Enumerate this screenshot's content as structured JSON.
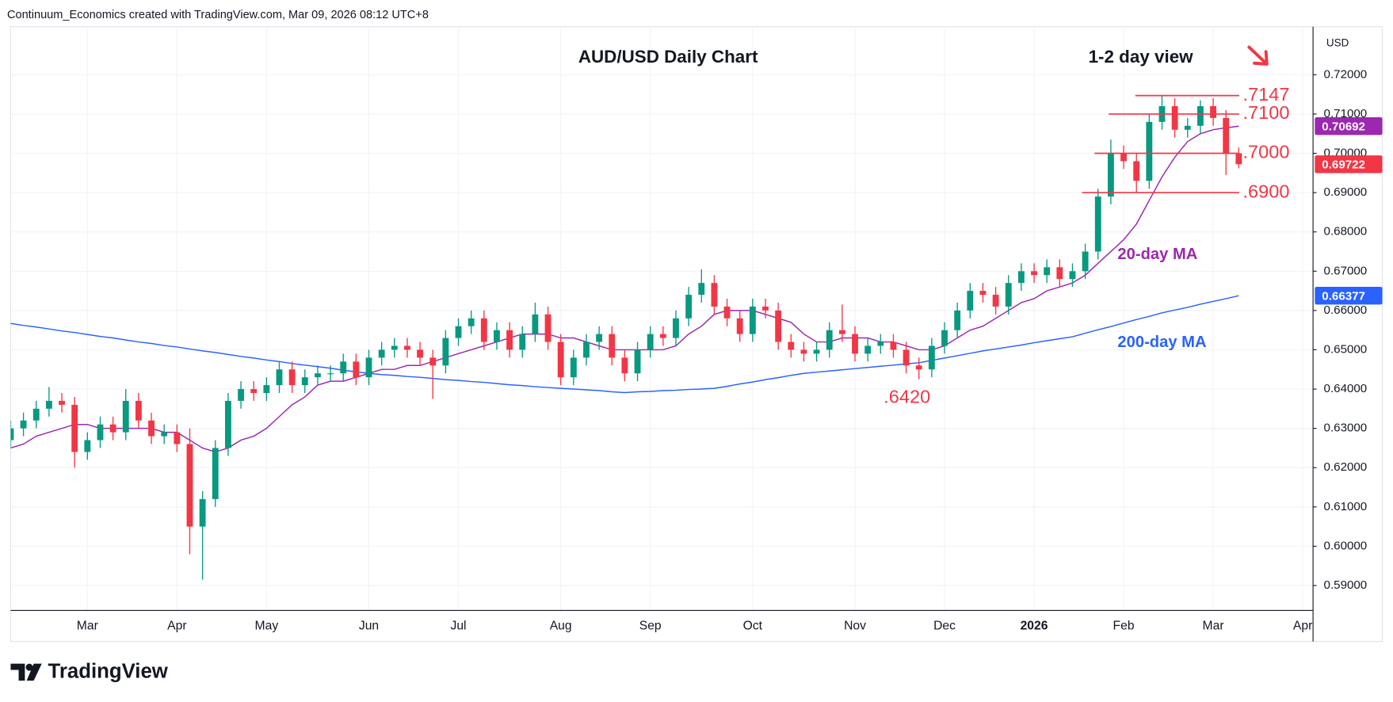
{
  "header": {
    "text": "Continuum_Economics created with TradingView.com, Mar 09, 2026 08:12 UTC+8"
  },
  "chart_data": {
    "type": "candlestick",
    "title": "AUD/USD Daily Chart",
    "subtitle": "1-2 day view",
    "currency": "USD",
    "categories": [
      null,
      null,
      null,
      null,
      null,
      null,
      "Mar",
      null,
      null,
      null,
      null,
      null,
      null,
      "Apr",
      null,
      null,
      null,
      null,
      null,
      null,
      "May",
      null,
      null,
      null,
      null,
      null,
      null,
      null,
      "Jun",
      null,
      null,
      null,
      null,
      null,
      null,
      "Jul",
      null,
      null,
      null,
      null,
      null,
      null,
      null,
      "Aug",
      null,
      null,
      null,
      null,
      null,
      null,
      "Sep",
      null,
      null,
      null,
      null,
      null,
      null,
      null,
      "Oct",
      null,
      null,
      null,
      null,
      null,
      null,
      null,
      "Nov",
      null,
      null,
      null,
      null,
      null,
      null,
      "Dec",
      null,
      null,
      null,
      null,
      null,
      null,
      "2026",
      null,
      null,
      null,
      null,
      null,
      null,
      "Feb",
      null,
      null,
      null,
      null,
      null,
      null,
      "Mar",
      null,
      null,
      null,
      null,
      null,
      null,
      "Apr"
    ],
    "open": [
      0.627,
      0.63,
      0.632,
      0.635,
      0.637,
      0.636,
      0.624,
      0.627,
      0.631,
      0.629,
      0.637,
      0.632,
      0.628,
      0.629,
      0.626,
      0.605,
      0.612,
      0.625,
      0.637,
      0.64,
      0.639,
      0.641,
      0.645,
      0.641,
      0.643,
      0.644,
      0.644,
      0.647,
      0.643,
      0.648,
      0.65,
      0.651,
      0.65,
      0.648,
      0.646,
      0.653,
      0.656,
      0.658,
      0.652,
      0.655,
      0.65,
      0.654,
      0.659,
      0.652,
      0.643,
      0.648,
      0.652,
      0.654,
      0.648,
      0.644,
      0.65,
      0.654,
      0.653,
      0.658,
      0.664,
      0.667,
      0.661,
      0.658,
      0.654,
      0.661,
      0.66,
      0.652,
      0.65,
      0.649,
      0.65,
      0.655,
      0.654,
      0.649,
      0.651,
      0.652,
      0.65,
      0.646,
      0.645,
      0.651,
      0.655,
      0.66,
      0.665,
      0.664,
      0.661,
      0.667,
      0.67,
      0.669,
      0.671,
      0.668,
      0.67,
      0.675,
      0.689,
      0.7,
      0.698,
      0.693,
      0.708,
      0.712,
      0.706,
      0.707,
      0.712,
      0.709,
      0.7,
      null,
      null,
      null,
      null,
      null
    ],
    "high": [
      0.632,
      0.634,
      0.637,
      0.6405,
      0.639,
      0.638,
      0.629,
      0.633,
      0.633,
      0.64,
      0.639,
      0.634,
      0.631,
      0.631,
      0.63,
      0.614,
      0.627,
      0.639,
      0.642,
      0.642,
      0.643,
      0.647,
      0.647,
      0.645,
      0.646,
      0.646,
      0.649,
      0.649,
      0.65,
      0.652,
      0.653,
      0.653,
      0.652,
      0.65,
      0.655,
      0.658,
      0.66,
      0.66,
      0.657,
      0.657,
      0.656,
      0.662,
      0.661,
      0.654,
      0.65,
      0.654,
      0.656,
      0.656,
      0.65,
      0.652,
      0.656,
      0.656,
      0.66,
      0.666,
      0.6705,
      0.669,
      0.663,
      0.66,
      0.663,
      0.663,
      0.662,
      0.654,
      0.652,
      0.652,
      0.657,
      0.6615,
      0.656,
      0.653,
      0.654,
      0.654,
      0.652,
      0.648,
      0.653,
      0.657,
      0.662,
      0.667,
      0.667,
      0.666,
      0.669,
      0.672,
      0.672,
      0.673,
      0.673,
      0.672,
      0.677,
      0.691,
      0.7035,
      0.702,
      0.7,
      0.71,
      0.7147,
      0.714,
      0.709,
      0.7135,
      0.714,
      0.711,
      0.7015,
      null,
      null,
      null,
      null,
      null
    ],
    "low": [
      0.625,
      0.628,
      0.63,
      0.633,
      0.634,
      0.62,
      0.622,
      0.625,
      0.627,
      0.627,
      0.63,
      0.626,
      0.626,
      0.624,
      0.598,
      0.5915,
      0.61,
      0.623,
      0.635,
      0.637,
      0.637,
      0.639,
      0.639,
      0.639,
      0.641,
      0.642,
      0.642,
      0.641,
      0.641,
      0.646,
      0.648,
      0.648,
      0.646,
      0.6375,
      0.644,
      0.651,
      0.654,
      0.65,
      0.65,
      0.648,
      0.648,
      0.652,
      0.65,
      0.641,
      0.641,
      0.646,
      0.65,
      0.646,
      0.642,
      0.642,
      0.648,
      0.651,
      0.651,
      0.656,
      0.662,
      0.659,
      0.656,
      0.652,
      0.652,
      0.658,
      0.65,
      0.648,
      0.647,
      0.647,
      0.648,
      0.652,
      0.647,
      0.647,
      0.649,
      0.648,
      0.644,
      0.6425,
      0.643,
      0.649,
      0.653,
      0.658,
      0.662,
      0.659,
      0.659,
      0.665,
      0.667,
      0.667,
      0.666,
      0.666,
      0.668,
      0.673,
      0.687,
      0.696,
      0.69,
      0.691,
      0.706,
      0.704,
      0.704,
      0.705,
      0.707,
      0.6945,
      0.6962,
      null,
      null,
      null,
      null,
      null
    ],
    "close": [
      0.63,
      0.632,
      0.635,
      0.637,
      0.636,
      0.624,
      0.627,
      0.631,
      0.629,
      0.637,
      0.632,
      0.628,
      0.629,
      0.626,
      0.605,
      0.612,
      0.625,
      0.637,
      0.64,
      0.639,
      0.641,
      0.645,
      0.641,
      0.643,
      0.644,
      0.644,
      0.647,
      0.643,
      0.648,
      0.65,
      0.651,
      0.65,
      0.648,
      0.646,
      0.653,
      0.656,
      0.658,
      0.652,
      0.655,
      0.65,
      0.654,
      0.659,
      0.652,
      0.643,
      0.648,
      0.652,
      0.654,
      0.648,
      0.644,
      0.65,
      0.654,
      0.653,
      0.658,
      0.664,
      0.667,
      0.661,
      0.658,
      0.654,
      0.661,
      0.66,
      0.652,
      0.65,
      0.649,
      0.65,
      0.655,
      0.654,
      0.649,
      0.651,
      0.652,
      0.65,
      0.646,
      0.645,
      0.651,
      0.655,
      0.66,
      0.665,
      0.664,
      0.661,
      0.667,
      0.67,
      0.669,
      0.671,
      0.668,
      0.67,
      0.675,
      0.689,
      0.7,
      0.698,
      0.693,
      0.708,
      0.712,
      0.706,
      0.707,
      0.712,
      0.709,
      0.7,
      0.69722,
      null,
      null,
      null,
      null,
      null
    ],
    "up_color": "#089981",
    "down_color": "#f23645",
    "series": [
      {
        "name": "20-day MA",
        "color": "#9c27b0",
        "values": [
          0.625,
          0.626,
          0.628,
          0.629,
          0.63,
          0.631,
          0.631,
          0.63,
          0.63,
          0.63,
          0.63,
          0.63,
          0.629,
          0.629,
          0.627,
          0.625,
          0.624,
          0.625,
          0.627,
          0.628,
          0.63,
          0.633,
          0.636,
          0.638,
          0.641,
          0.642,
          0.642,
          0.643,
          0.644,
          0.645,
          0.645,
          0.646,
          0.646,
          0.647,
          0.648,
          0.649,
          0.65,
          0.651,
          0.652,
          0.653,
          0.654,
          0.654,
          0.654,
          0.653,
          0.653,
          0.652,
          0.651,
          0.65,
          0.65,
          0.65,
          0.65,
          0.65,
          0.651,
          0.654,
          0.656,
          0.659,
          0.66,
          0.66,
          0.66,
          0.659,
          0.658,
          0.657,
          0.654,
          0.652,
          0.652,
          0.653,
          0.653,
          0.653,
          0.652,
          0.652,
          0.651,
          0.65,
          0.65,
          0.651,
          0.653,
          0.655,
          0.656,
          0.658,
          0.66,
          0.662,
          0.663,
          0.665,
          0.666,
          0.667,
          0.669,
          0.672,
          0.675,
          0.678,
          0.682,
          0.688,
          0.694,
          0.699,
          0.703,
          0.705,
          0.706,
          0.7065,
          0.70692,
          null,
          null,
          null,
          null,
          null
        ]
      },
      {
        "name": "200-day MA",
        "color": "#2962ff",
        "values": [
          0.6567,
          0.6562,
          0.6558,
          0.6553,
          0.6548,
          0.6544,
          0.6539,
          0.6534,
          0.653,
          0.6525,
          0.652,
          0.6516,
          0.6511,
          0.6507,
          0.6502,
          0.6497,
          0.6493,
          0.6488,
          0.6483,
          0.6479,
          0.6474,
          0.647,
          0.6465,
          0.6461,
          0.6457,
          0.6453,
          0.6448,
          0.6444,
          0.644,
          0.6437,
          0.6435,
          0.6432,
          0.643,
          0.6427,
          0.6424,
          0.6422,
          0.6419,
          0.6417,
          0.6414,
          0.6411,
          0.6409,
          0.6406,
          0.6404,
          0.6402,
          0.64,
          0.6398,
          0.6396,
          0.6393,
          0.6391,
          0.6393,
          0.6394,
          0.6396,
          0.6397,
          0.6399,
          0.64,
          0.6402,
          0.6407,
          0.6413,
          0.6418,
          0.6424,
          0.6429,
          0.6435,
          0.644,
          0.6443,
          0.6446,
          0.6449,
          0.6452,
          0.6455,
          0.6458,
          0.6461,
          0.6464,
          0.6467,
          0.6473,
          0.6479,
          0.6485,
          0.6491,
          0.6497,
          0.6502,
          0.6507,
          0.6512,
          0.6518,
          0.6523,
          0.6528,
          0.6533,
          0.6542,
          0.6551,
          0.6559,
          0.6568,
          0.6577,
          0.6585,
          0.6594,
          0.6601,
          0.6608,
          0.6616,
          0.6623,
          0.663,
          0.66377,
          null,
          null,
          null,
          null,
          null
        ]
      }
    ],
    "ylim": [
      0.58367,
      0.73221
    ],
    "yticks": [
      {
        "value": 0.59,
        "label": "0.59000"
      },
      {
        "value": 0.6,
        "label": "0.60000"
      },
      {
        "value": 0.61,
        "label": "0.61000"
      },
      {
        "value": 0.62,
        "label": "0.62000"
      },
      {
        "value": 0.63,
        "label": "0.63000"
      },
      {
        "value": 0.64,
        "label": "0.64000"
      },
      {
        "value": 0.65,
        "label": "0.65000"
      },
      {
        "value": 0.66,
        "label": "0.66000"
      },
      {
        "value": 0.67,
        "label": "0.67000"
      },
      {
        "value": 0.68,
        "label": "0.68000"
      },
      {
        "value": 0.69,
        "label": "0.69000"
      },
      {
        "value": 0.7,
        "label": "0.70000"
      },
      {
        "value": 0.71,
        "label": "0.71000"
      },
      {
        "value": 0.72,
        "label": "0.72000"
      }
    ],
    "grid": true,
    "level_color": "#f23645",
    "levels": [
      {
        "value": 0.7147,
        "label": ".7147"
      },
      {
        "value": 0.71,
        "label": ".7100"
      },
      {
        "value": 0.7,
        "label": ".7000"
      },
      {
        "value": 0.69,
        "label": ".6900"
      }
    ],
    "annotations": [
      {
        "value": 0.642,
        "label": ".6420"
      }
    ],
    "price_tags": [
      {
        "value": 0.70692,
        "label": "0.70692",
        "color": "#9c27b0"
      },
      {
        "value": 0.69722,
        "label": "0.69722",
        "color": "#f23645"
      },
      {
        "value": 0.66377,
        "label": "0.66377",
        "color": "#2962ff"
      }
    ]
  },
  "footer": {
    "brand": "TradingView"
  }
}
